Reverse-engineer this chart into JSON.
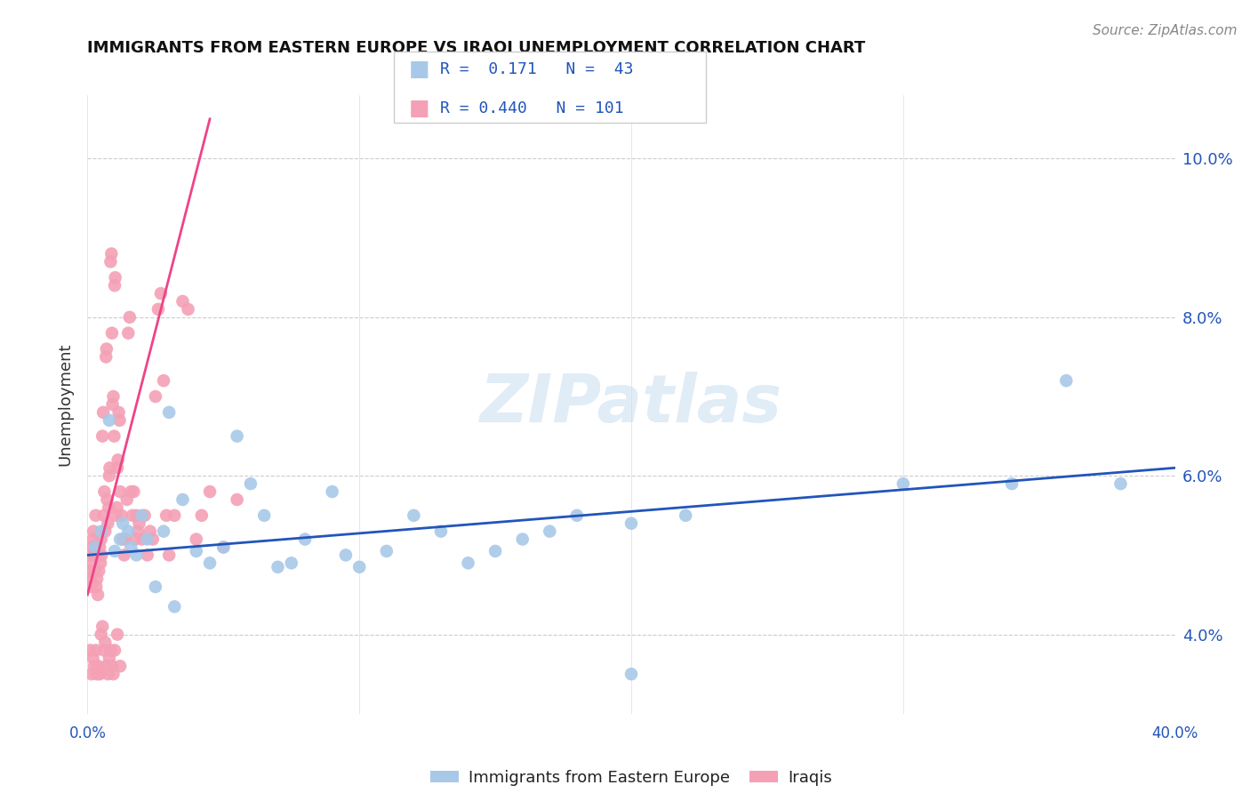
{
  "title": "IMMIGRANTS FROM EASTERN EUROPE VS IRAQI UNEMPLOYMENT CORRELATION CHART",
  "source": "Source: ZipAtlas.com",
  "ylabel": "Unemployment",
  "yticks": [
    4.0,
    6.0,
    8.0,
    10.0
  ],
  "ytick_labels": [
    "4.0%",
    "6.0%",
    "8.0%",
    "10.0%"
  ],
  "xlim": [
    0.0,
    40.0
  ],
  "ylim": [
    3.0,
    10.8
  ],
  "watermark": "ZIPatlas",
  "legend_blue_label": "Immigrants from Eastern Europe",
  "legend_pink_label": "Iraqis",
  "legend_blue_r": "0.171",
  "legend_blue_n": "43",
  "legend_pink_r": "0.440",
  "legend_pink_n": "101",
  "blue_color": "#A8C8E8",
  "pink_color": "#F4A0B5",
  "blue_line_color": "#2255BB",
  "pink_line_color": "#EE4488",
  "blue_scatter": [
    [
      0.3,
      5.1
    ],
    [
      0.5,
      5.3
    ],
    [
      0.8,
      6.7
    ],
    [
      1.0,
      5.05
    ],
    [
      1.2,
      5.2
    ],
    [
      1.3,
      5.4
    ],
    [
      1.5,
      5.3
    ],
    [
      1.6,
      5.1
    ],
    [
      1.8,
      5.0
    ],
    [
      2.0,
      5.5
    ],
    [
      2.2,
      5.2
    ],
    [
      2.5,
      4.6
    ],
    [
      2.8,
      5.3
    ],
    [
      3.0,
      6.8
    ],
    [
      3.2,
      4.35
    ],
    [
      3.5,
      5.7
    ],
    [
      4.0,
      5.05
    ],
    [
      4.5,
      4.9
    ],
    [
      5.0,
      5.1
    ],
    [
      5.5,
      6.5
    ],
    [
      6.0,
      5.9
    ],
    [
      6.5,
      5.5
    ],
    [
      7.0,
      4.85
    ],
    [
      7.5,
      4.9
    ],
    [
      8.0,
      5.2
    ],
    [
      9.0,
      5.8
    ],
    [
      9.5,
      5.0
    ],
    [
      10.0,
      4.85
    ],
    [
      11.0,
      5.05
    ],
    [
      12.0,
      5.5
    ],
    [
      13.0,
      5.3
    ],
    [
      14.0,
      4.9
    ],
    [
      15.0,
      5.05
    ],
    [
      16.0,
      5.2
    ],
    [
      17.0,
      5.3
    ],
    [
      18.0,
      5.5
    ],
    [
      20.0,
      5.4
    ],
    [
      22.0,
      5.5
    ],
    [
      30.0,
      5.9
    ],
    [
      34.0,
      5.9
    ],
    [
      36.0,
      7.2
    ],
    [
      38.0,
      5.9
    ],
    [
      20.0,
      3.5
    ]
  ],
  "pink_scatter": [
    [
      0.05,
      4.8
    ],
    [
      0.08,
      5.0
    ],
    [
      0.1,
      4.7
    ],
    [
      0.12,
      4.6
    ],
    [
      0.15,
      4.9
    ],
    [
      0.18,
      5.1
    ],
    [
      0.2,
      5.2
    ],
    [
      0.22,
      5.3
    ],
    [
      0.25,
      5.0
    ],
    [
      0.28,
      4.8
    ],
    [
      0.3,
      5.5
    ],
    [
      0.32,
      4.6
    ],
    [
      0.35,
      4.7
    ],
    [
      0.38,
      4.5
    ],
    [
      0.4,
      5.0
    ],
    [
      0.42,
      4.8
    ],
    [
      0.45,
      5.1
    ],
    [
      0.48,
      4.9
    ],
    [
      0.5,
      5.2
    ],
    [
      0.52,
      5.0
    ],
    [
      0.55,
      6.5
    ],
    [
      0.58,
      6.8
    ],
    [
      0.6,
      5.5
    ],
    [
      0.62,
      5.8
    ],
    [
      0.65,
      5.3
    ],
    [
      0.68,
      7.5
    ],
    [
      0.7,
      7.6
    ],
    [
      0.72,
      5.7
    ],
    [
      0.75,
      5.4
    ],
    [
      0.78,
      5.6
    ],
    [
      0.8,
      6.0
    ],
    [
      0.82,
      6.1
    ],
    [
      0.85,
      8.7
    ],
    [
      0.88,
      8.8
    ],
    [
      0.9,
      7.8
    ],
    [
      0.92,
      6.9
    ],
    [
      0.95,
      7.0
    ],
    [
      0.98,
      6.5
    ],
    [
      1.0,
      8.4
    ],
    [
      1.02,
      8.5
    ],
    [
      1.05,
      5.5
    ],
    [
      1.08,
      5.6
    ],
    [
      1.1,
      6.1
    ],
    [
      1.12,
      6.2
    ],
    [
      1.15,
      6.8
    ],
    [
      1.18,
      6.7
    ],
    [
      1.2,
      5.8
    ],
    [
      1.25,
      5.5
    ],
    [
      1.3,
      5.2
    ],
    [
      1.35,
      5.0
    ],
    [
      1.4,
      5.2
    ],
    [
      1.45,
      5.7
    ],
    [
      1.5,
      7.8
    ],
    [
      1.55,
      8.0
    ],
    [
      1.6,
      5.8
    ],
    [
      1.65,
      5.5
    ],
    [
      1.7,
      5.8
    ],
    [
      1.75,
      5.2
    ],
    [
      1.8,
      5.5
    ],
    [
      1.85,
      5.3
    ],
    [
      1.9,
      5.4
    ],
    [
      2.0,
      5.2
    ],
    [
      2.1,
      5.5
    ],
    [
      2.2,
      5.0
    ],
    [
      2.3,
      5.3
    ],
    [
      2.4,
      5.2
    ],
    [
      2.5,
      7.0
    ],
    [
      2.6,
      8.1
    ],
    [
      2.7,
      8.3
    ],
    [
      2.8,
      7.2
    ],
    [
      2.9,
      5.5
    ],
    [
      3.0,
      5.0
    ],
    [
      3.2,
      5.5
    ],
    [
      3.5,
      8.2
    ],
    [
      3.7,
      8.1
    ],
    [
      4.0,
      5.2
    ],
    [
      4.2,
      5.5
    ],
    [
      4.5,
      5.8
    ],
    [
      5.0,
      5.1
    ],
    [
      5.5,
      5.7
    ],
    [
      0.1,
      3.8
    ],
    [
      0.15,
      3.5
    ],
    [
      0.2,
      3.7
    ],
    [
      0.25,
      3.6
    ],
    [
      0.3,
      3.8
    ],
    [
      0.35,
      3.5
    ],
    [
      0.4,
      3.6
    ],
    [
      0.45,
      3.5
    ],
    [
      0.5,
      4.0
    ],
    [
      0.55,
      4.1
    ],
    [
      0.6,
      3.8
    ],
    [
      0.65,
      3.9
    ],
    [
      0.7,
      3.6
    ],
    [
      0.75,
      3.5
    ],
    [
      0.8,
      3.7
    ],
    [
      0.85,
      3.8
    ],
    [
      0.9,
      3.6
    ],
    [
      0.95,
      3.5
    ],
    [
      1.0,
      3.8
    ],
    [
      1.1,
      4.0
    ],
    [
      1.2,
      3.6
    ]
  ],
  "blue_line_x": [
    0.0,
    40.0
  ],
  "blue_line_y": [
    5.0,
    6.1
  ],
  "pink_line_x": [
    0.0,
    4.5
  ],
  "pink_line_y": [
    4.5,
    10.5
  ]
}
